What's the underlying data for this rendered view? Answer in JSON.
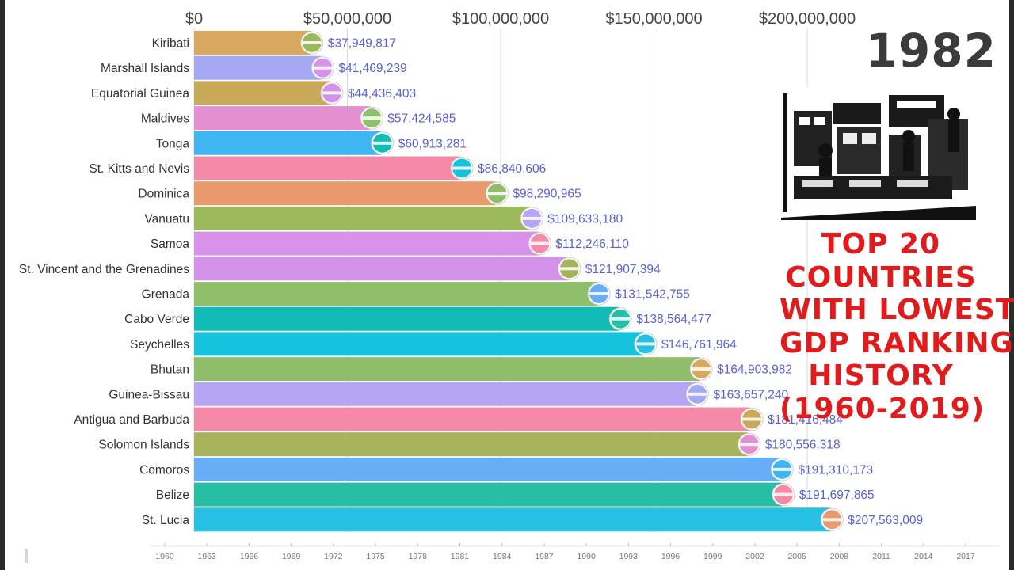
{
  "chart_data": {
    "type": "bar",
    "orientation": "horizontal",
    "title": "TOP 20 COUNTRIES WITH LOWEST GDP RANKING HISTORY (1960-2019)",
    "current_year": "1982",
    "xlim": [
      0,
      200000000
    ],
    "x_ticks": [
      "$0",
      "$50,000,000",
      "$100,000,000",
      "$150,000,000",
      "$200,000,000"
    ],
    "categories": [
      "Kiribati",
      "Marshall Islands",
      "Equatorial Guinea",
      "Maldives",
      "Tonga",
      "St. Kitts and Nevis",
      "Dominica",
      "Vanuatu",
      "Samoa",
      "St. Vincent and the Grenadines",
      "Grenada",
      "Cabo Verde",
      "Seychelles",
      "Bhutan",
      "Guinea-Bissau",
      "Antigua and Barbuda",
      "Solomon Islands",
      "Comoros",
      "Belize",
      "St. Lucia"
    ],
    "values": [
      37949817,
      41469239,
      44436403,
      57424585,
      60913281,
      86840606,
      98290965,
      109633180,
      112246110,
      121907394,
      131542755,
      138564477,
      146761964,
      164903982,
      163657240,
      181416484,
      180556318,
      191310173,
      191697865,
      207563009
    ],
    "value_labels": [
      "$37,949,817",
      "$41,469,239",
      "$44,436,403",
      "$57,424,585",
      "$60,913,281",
      "$86,840,606",
      "$98,290,965",
      "$109,633,180",
      "$112,246,110",
      "$121,907,394",
      "$131,542,755",
      "$138,564,477",
      "$146,761,964",
      "$164,903,982",
      "$163,657,240",
      "$181,416,484",
      "$180,556,318",
      "$191,310,173",
      "$191,697,865",
      "$207,563,009"
    ],
    "colors": [
      "#d8a85e",
      "#a4a9f2",
      "#c8a958",
      "#e48fd0",
      "#3fb5f2",
      "#f58aa8",
      "#e9996b",
      "#9ab95a",
      "#d892ea",
      "#d392ea",
      "#8fbf6a",
      "#12bcb6",
      "#16c3dd",
      "#8fbd6a",
      "#b5a5f2",
      "#f58aa8",
      "#a7b35a",
      "#68aef6",
      "#26bfa6",
      "#27c0e5"
    ],
    "flag_icons": [
      "kiribati-flag-icon",
      "marshall-islands-flag-icon",
      "equatorial-guinea-flag-icon",
      "maldives-flag-icon",
      "tonga-flag-icon",
      "st-kitts-and-nevis-flag-icon",
      "dominica-flag-icon",
      "vanuatu-flag-icon",
      "samoa-flag-icon",
      "st-vincent-flag-icon",
      "grenada-flag-icon",
      "cabo-verde-flag-icon",
      "seychelles-flag-icon",
      "bhutan-flag-icon",
      "guinea-bissau-flag-icon",
      "antigua-and-barbuda-flag-icon",
      "solomon-islands-flag-icon",
      "comoros-flag-icon",
      "belize-flag-icon",
      "st-lucia-flag-icon"
    ],
    "timeline_years": [
      "1960",
      "1963",
      "1966",
      "1969",
      "1972",
      "1975",
      "1978",
      "1981",
      "1984",
      "1987",
      "1990",
      "1993",
      "1996",
      "1999",
      "2002",
      "2005",
      "2008",
      "2011",
      "2014",
      "2017"
    ],
    "label_color": "#5b5fd6"
  },
  "title_lines": [
    "TOP 20",
    "COUNTRIES",
    "WITH LOWEST",
    "GDP RANKING",
    "HISTORY",
    "(1960-2019)"
  ]
}
